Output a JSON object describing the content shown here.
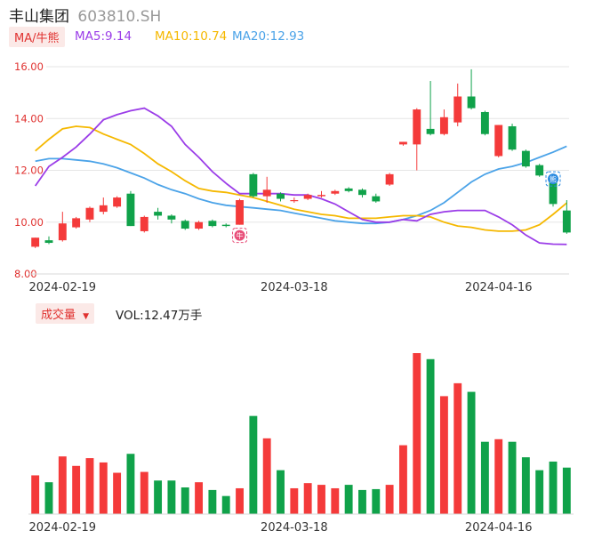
{
  "header": {
    "name": "丰山集团",
    "code": "603810.SH"
  },
  "ma_bar": {
    "selector": "MA/牛熊",
    "ma5": "MA5:9.14",
    "ma10": "MA10:10.74",
    "ma20": "MA20:12.93",
    "colors": {
      "ma5": "#9b3de8",
      "ma10": "#f5b800",
      "ma20": "#4ba3e8"
    }
  },
  "volume_bar": {
    "selector": "成交量",
    "value": "VOL:12.47万手"
  },
  "colors": {
    "up": "#f43a3a",
    "down": "#10a24a",
    "grid": "#e6e6e6",
    "axis_text": "#e0312f"
  },
  "markers": [
    {
      "index": 15,
      "label": "牛",
      "color": "#e8507a"
    },
    {
      "index": 38,
      "label": "熊",
      "color": "#2a8ae0"
    }
  ],
  "chart_data": {
    "type": "candlestick",
    "price_axis": {
      "ylim": [
        8,
        16
      ],
      "ticks": [
        "8.00",
        "10.00",
        "12.00",
        "14.00",
        "16.00"
      ]
    },
    "date_ticks": [
      {
        "index": 2,
        "label": "2024-02-19"
      },
      {
        "index": 19,
        "label": "2024-03-18"
      },
      {
        "index": 34,
        "label": "2024-04-16"
      }
    ],
    "candles": [
      [
        9.05,
        9.4,
        9.0,
        9.4
      ],
      [
        9.3,
        9.2,
        9.15,
        9.45
      ],
      [
        9.3,
        9.95,
        9.25,
        10.4
      ],
      [
        9.8,
        10.15,
        9.75,
        10.2
      ],
      [
        10.1,
        10.55,
        10.0,
        10.6
      ],
      [
        10.4,
        10.65,
        10.3,
        10.95
      ],
      [
        10.6,
        10.95,
        10.55,
        11.0
      ],
      [
        11.1,
        9.85,
        9.85,
        11.2
      ],
      [
        9.65,
        10.2,
        9.6,
        10.25
      ],
      [
        10.4,
        10.25,
        10.1,
        10.55
      ],
      [
        10.25,
        10.1,
        9.95,
        10.3
      ],
      [
        10.05,
        9.75,
        9.7,
        10.1
      ],
      [
        9.75,
        10.0,
        9.7,
        10.05
      ],
      [
        10.05,
        9.85,
        9.8,
        10.1
      ],
      [
        9.9,
        9.85,
        9.8,
        9.95
      ],
      [
        9.9,
        10.85,
        9.9,
        10.9
      ],
      [
        11.85,
        11.0,
        10.95,
        11.9
      ],
      [
        11.0,
        11.25,
        10.75,
        11.75
      ],
      [
        11.1,
        10.9,
        10.8,
        11.15
      ],
      [
        10.85,
        10.85,
        10.75,
        10.95
      ],
      [
        10.9,
        11.05,
        10.85,
        11.1
      ],
      [
        11.0,
        11.05,
        10.95,
        11.2
      ],
      [
        11.1,
        11.2,
        11.05,
        11.25
      ],
      [
        11.3,
        11.2,
        11.15,
        11.35
      ],
      [
        11.25,
        11.05,
        10.95,
        11.3
      ],
      [
        11.0,
        10.8,
        10.75,
        11.1
      ],
      [
        11.45,
        11.85,
        11.4,
        11.9
      ],
      [
        13.0,
        13.1,
        12.95,
        13.1
      ],
      [
        13.0,
        14.35,
        12.0,
        14.4
      ],
      [
        13.6,
        13.4,
        13.35,
        15.45
      ],
      [
        13.4,
        14.05,
        13.35,
        14.35
      ],
      [
        13.85,
        14.85,
        13.7,
        15.35
      ],
      [
        14.85,
        14.4,
        14.35,
        15.9
      ],
      [
        14.25,
        13.4,
        13.35,
        14.3
      ],
      [
        12.55,
        13.75,
        12.5,
        13.75
      ],
      [
        13.7,
        12.8,
        12.75,
        13.8
      ],
      [
        12.75,
        12.15,
        12.1,
        12.8
      ],
      [
        12.2,
        11.8,
        11.75,
        12.25
      ],
      [
        11.55,
        10.7,
        10.6,
        11.6
      ],
      [
        10.45,
        9.6,
        9.55,
        10.85
      ]
    ],
    "ma5": [
      11.4,
      12.15,
      12.5,
      12.9,
      13.4,
      13.95,
      14.15,
      14.3,
      14.4,
      14.1,
      13.7,
      13.0,
      12.5,
      11.95,
      11.5,
      11.1,
      11.1,
      11.1,
      11.1,
      11.05,
      11.05,
      10.9,
      10.7,
      10.4,
      10.1,
      10.0,
      10.0,
      10.1,
      10.05,
      10.3,
      10.4,
      10.45,
      10.45,
      10.45,
      10.2,
      9.9,
      9.5,
      9.2,
      9.15,
      9.14
    ],
    "ma10": [
      12.75,
      13.2,
      13.6,
      13.7,
      13.65,
      13.4,
      13.2,
      13.0,
      12.65,
      12.25,
      11.95,
      11.6,
      11.3,
      11.2,
      11.15,
      11.05,
      10.95,
      10.8,
      10.65,
      10.5,
      10.4,
      10.3,
      10.25,
      10.15,
      10.15,
      10.15,
      10.2,
      10.25,
      10.25,
      10.2,
      10.0,
      9.85,
      9.8,
      9.7,
      9.65,
      9.65,
      9.7,
      9.9,
      10.3,
      10.74
    ],
    "ma20": [
      12.35,
      12.45,
      12.45,
      12.4,
      12.35,
      12.25,
      12.1,
      11.9,
      11.7,
      11.45,
      11.25,
      11.1,
      10.9,
      10.75,
      10.65,
      10.6,
      10.55,
      10.5,
      10.45,
      10.35,
      10.25,
      10.15,
      10.05,
      10.0,
      9.95,
      9.95,
      10.0,
      10.1,
      10.25,
      10.45,
      10.75,
      11.15,
      11.55,
      11.85,
      12.05,
      12.15,
      12.3,
      12.5,
      12.7,
      12.93
    ],
    "volume": [
      45,
      37,
      67,
      56,
      65,
      60,
      48,
      70,
      49,
      39,
      39,
      31,
      37,
      28,
      21,
      30,
      114,
      88,
      51,
      30,
      36,
      34,
      30,
      34,
      28,
      29,
      34,
      80,
      187,
      180,
      137,
      152,
      142,
      84,
      87,
      84,
      66,
      51,
      61,
      54
    ]
  }
}
